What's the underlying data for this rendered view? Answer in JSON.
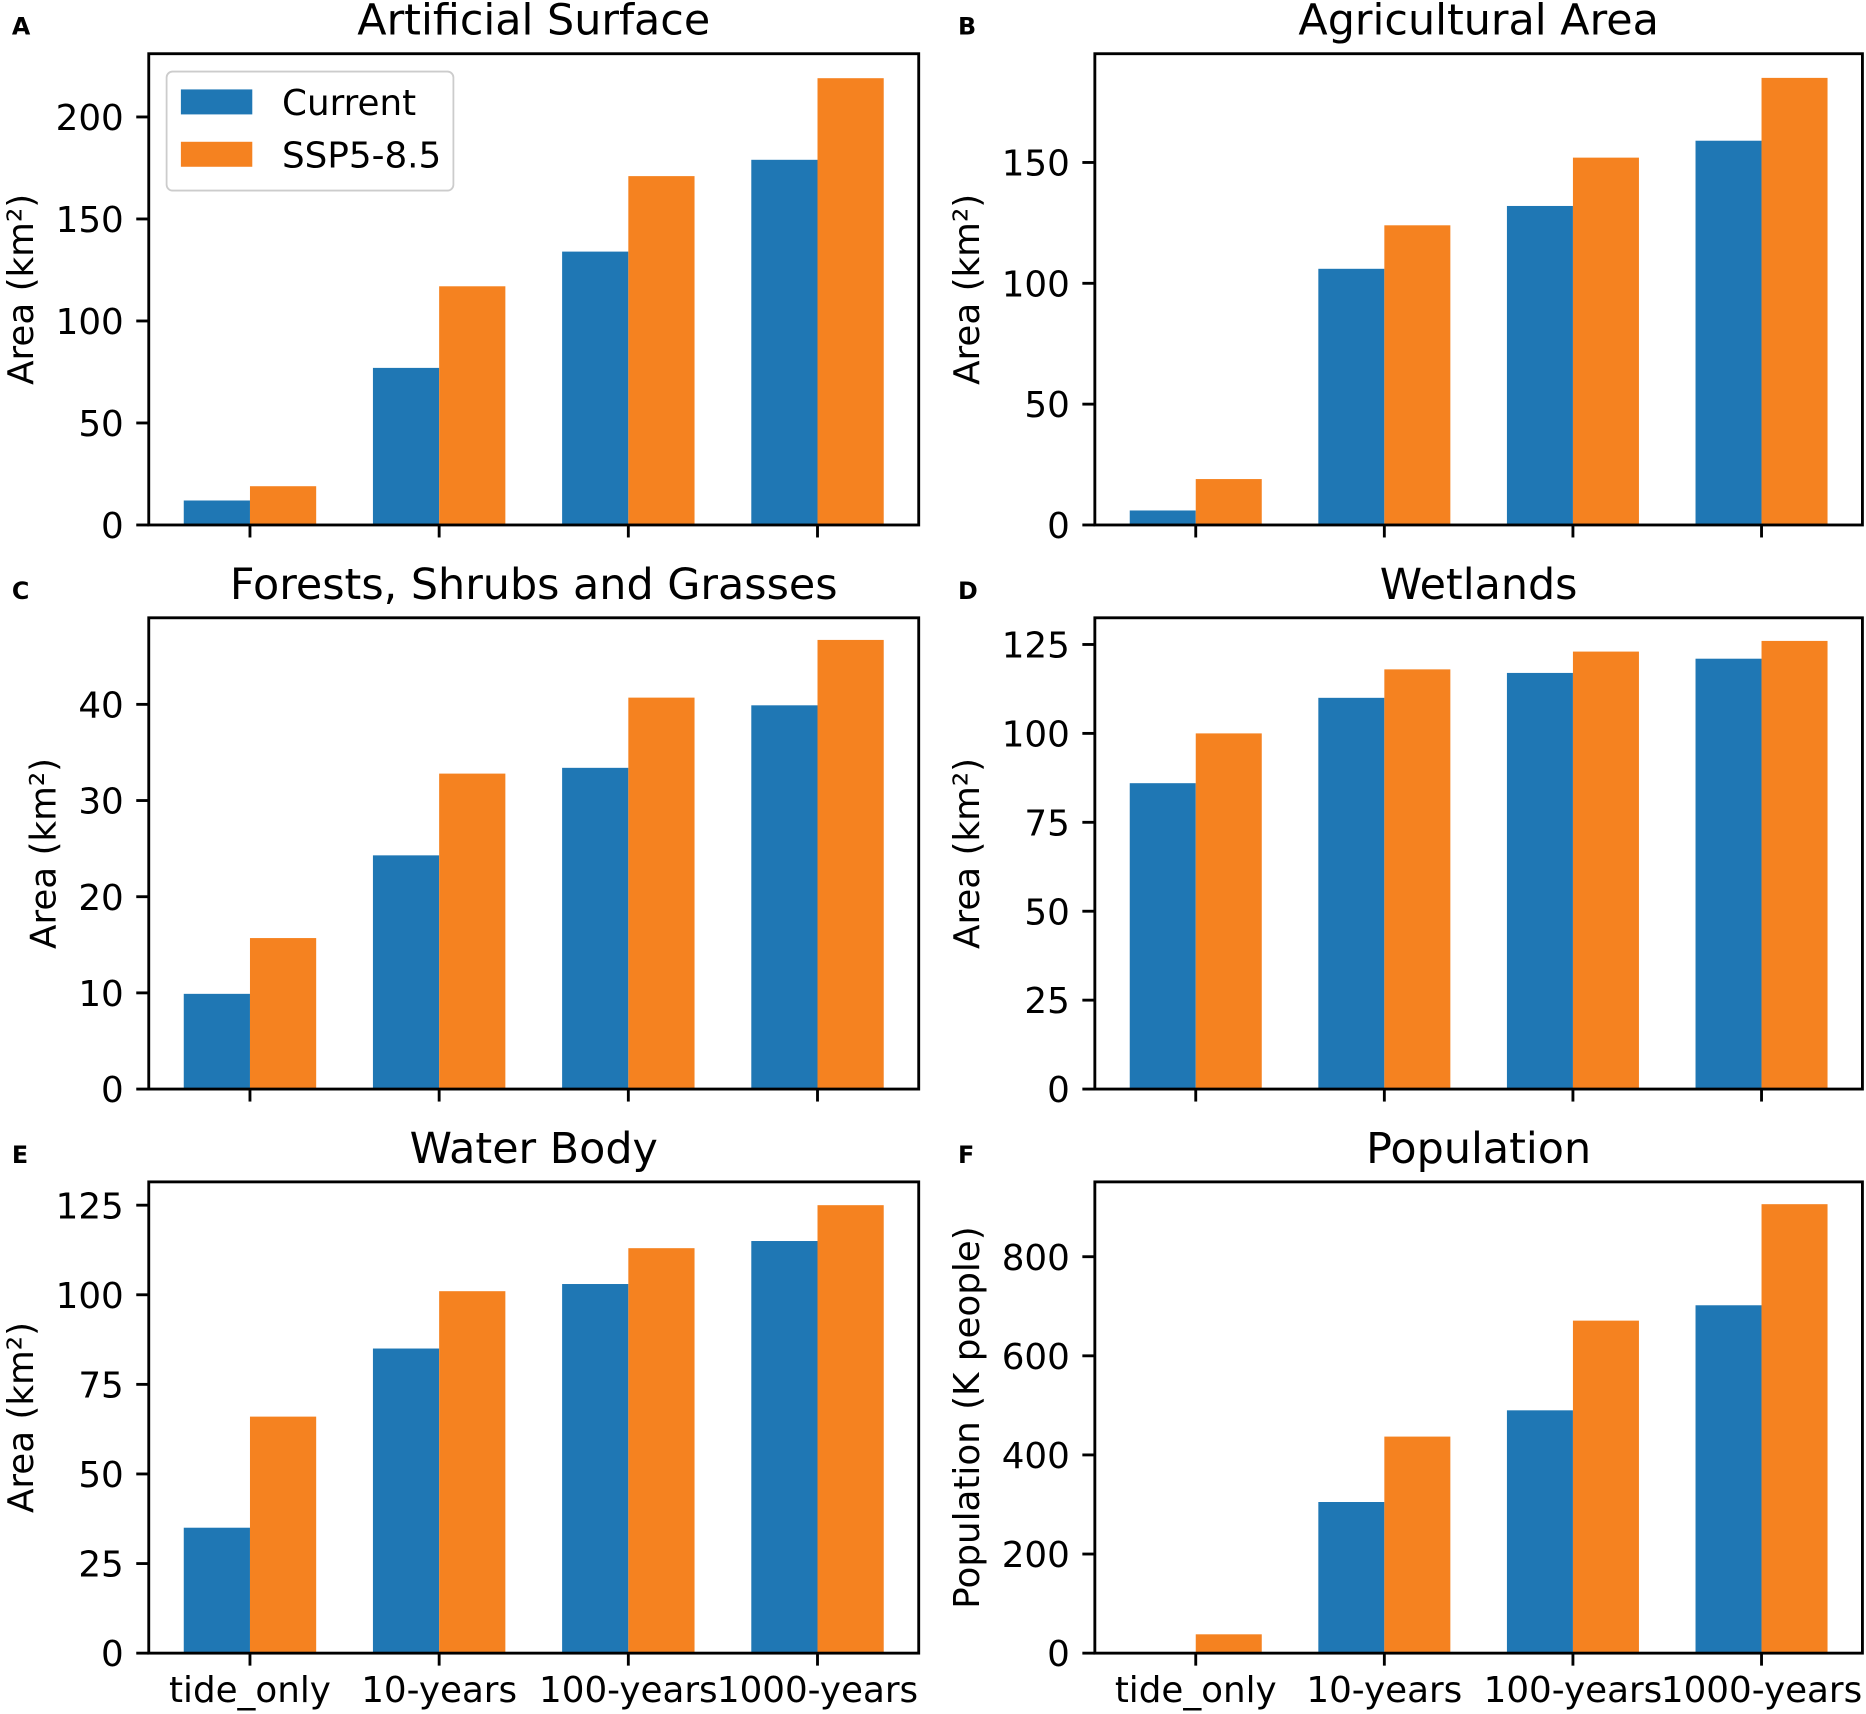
{
  "chart_data": {
    "type": "bar",
    "categories": [
      "tide_only",
      "10-years",
      "100-years",
      "1000-years"
    ],
    "series": [
      {
        "name": "Current",
        "color": "#1f77b4"
      },
      {
        "name": "SSP5-8.5",
        "color": "#f58220"
      }
    ],
    "legend": {
      "placement": "upper-left",
      "panel_index": 0
    },
    "grid": false,
    "panels": [
      {
        "label": "A",
        "title": "Artificial Surface",
        "ylabel": "Area (km²)",
        "ylim": [
          0,
          231
        ],
        "yticks": [
          0,
          50,
          100,
          150,
          200
        ],
        "show_category_labels": false,
        "values": {
          "Current": [
            12,
            77,
            134,
            179
          ],
          "SSP5-8.5": [
            19,
            117,
            171,
            219
          ]
        }
      },
      {
        "label": "B",
        "title": "Agricultural Area",
        "ylabel": "Area (km²)",
        "ylim": [
          0,
          195
        ],
        "yticks": [
          0,
          50,
          100,
          150
        ],
        "show_category_labels": false,
        "values": {
          "Current": [
            6,
            106,
            132,
            159
          ],
          "SSP5-8.5": [
            19,
            124,
            152,
            185
          ]
        }
      },
      {
        "label": "C",
        "title": "Forests, Shrubs and Grasses",
        "ylabel": "Area (km²)",
        "ylim": [
          0,
          49
        ],
        "yticks": [
          0,
          10,
          20,
          30,
          40
        ],
        "show_category_labels": false,
        "values": {
          "Current": [
            9.9,
            24.3,
            33.4,
            39.9
          ],
          "SSP5-8.5": [
            15.7,
            32.8,
            40.7,
            46.7
          ]
        }
      },
      {
        "label": "D",
        "title": "Wetlands",
        "ylabel": "Area (km²)",
        "ylim": [
          0,
          132.5
        ],
        "yticks": [
          0,
          25,
          50,
          75,
          100,
          125
        ],
        "show_category_labels": false,
        "values": {
          "Current": [
            86,
            110,
            117,
            121
          ],
          "SSP5-8.5": [
            100,
            118,
            123,
            126
          ]
        }
      },
      {
        "label": "E",
        "title": "Water Body",
        "ylabel": "Area (km²)",
        "ylim": [
          0,
          131.5
        ],
        "yticks": [
          0,
          25,
          50,
          75,
          100,
          125
        ],
        "show_category_labels": true,
        "values": {
          "Current": [
            35,
            85,
            103,
            115
          ],
          "SSP5-8.5": [
            66,
            101,
            113,
            125
          ]
        }
      },
      {
        "label": "F",
        "title": "Population",
        "ylabel": "Population (K people)",
        "ylim": [
          0,
          951
        ],
        "yticks": [
          0,
          200,
          400,
          600,
          800
        ],
        "show_category_labels": true,
        "values": {
          "Current": [
            0,
            305,
            490,
            702
          ],
          "SSP5-8.5": [
            38,
            437,
            671,
            906
          ]
        }
      }
    ]
  }
}
